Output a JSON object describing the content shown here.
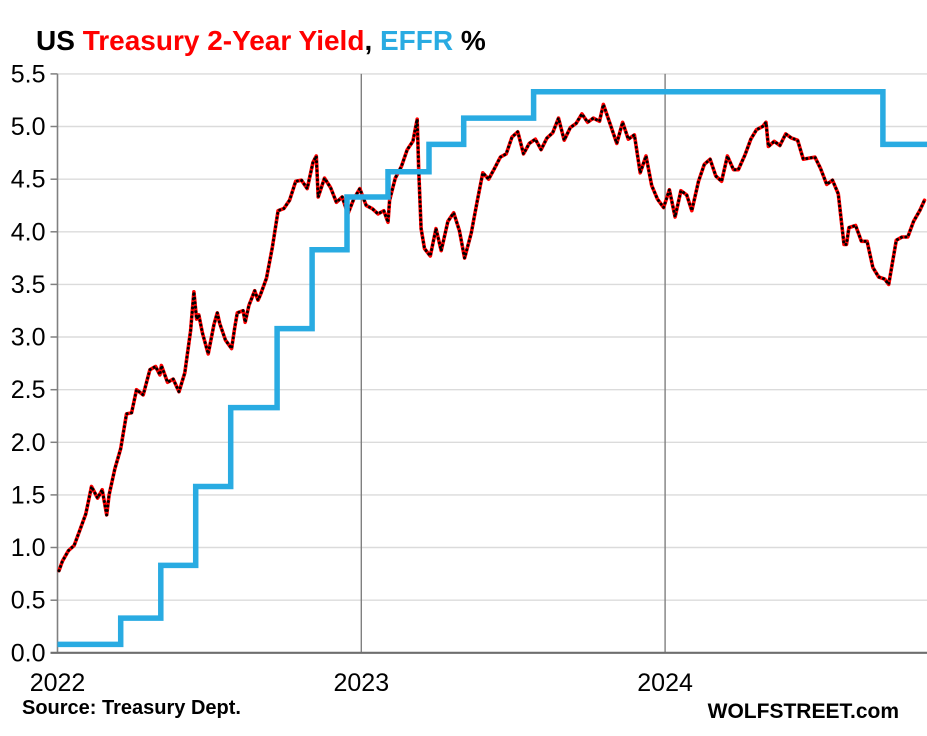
{
  "title": {
    "full_text": "US Treasury 2-Year Yield, EFFR %",
    "segments": [
      {
        "text": "US ",
        "color": "#000000"
      },
      {
        "text": "Treasury 2-Year Yield",
        "color": "#FF0000"
      },
      {
        "text": ", ",
        "color": "#000000"
      },
      {
        "text": "EFFR",
        "color": "#29ABE2"
      },
      {
        "text": " %",
        "color": "#000000"
      }
    ]
  },
  "footer": {
    "source": "Source: Treasury Dept.",
    "branding": "WOLFSTREET.com"
  },
  "colors": {
    "yield_red": "#FF0000",
    "marker_black": "#000000",
    "effr_blue": "#29ABE2",
    "grid_light": "#DBDBDB",
    "axis_gray": "#6E6E6E",
    "year_line_gray": "#808080"
  },
  "chart_data": {
    "type": "line",
    "title": "US Treasury 2-Year Yield, EFFR %",
    "xlabel": "",
    "ylabel": "",
    "grid": "horizontal light gray; dark vertical line at each year start",
    "legend": "encoded in title colors",
    "x_axis": {
      "min": 2022.0,
      "max": 2024.861,
      "tick_values": [
        2022,
        2023,
        2024
      ],
      "tick_labels": [
        "2022",
        "2023",
        "2024"
      ]
    },
    "y_axis": {
      "min": 0.0,
      "max": 5.5,
      "step": 0.5,
      "tick_labels": [
        "0.0",
        "0.5",
        "1.0",
        "1.5",
        "2.0",
        "2.5",
        "3.0",
        "3.5",
        "4.0",
        "4.5",
        "5.0",
        "5.5"
      ]
    },
    "series": [
      {
        "name": "US Treasury 2-Year Yield",
        "type": "line",
        "color": "#FF0000",
        "marker": "black-dots",
        "points": [
          [
            2022.005,
            0.78
          ],
          [
            2022.016,
            0.87
          ],
          [
            2022.036,
            0.97
          ],
          [
            2022.055,
            1.02
          ],
          [
            2022.074,
            1.17
          ],
          [
            2022.093,
            1.32
          ],
          [
            2022.112,
            1.58
          ],
          [
            2022.132,
            1.47
          ],
          [
            2022.147,
            1.55
          ],
          [
            2022.162,
            1.31
          ],
          [
            2022.17,
            1.5
          ],
          [
            2022.189,
            1.75
          ],
          [
            2022.208,
            1.94
          ],
          [
            2022.227,
            2.27
          ],
          [
            2022.244,
            2.28
          ],
          [
            2022.26,
            2.5
          ],
          [
            2022.282,
            2.45
          ],
          [
            2022.304,
            2.69
          ],
          [
            2022.323,
            2.72
          ],
          [
            2022.337,
            2.64
          ],
          [
            2022.342,
            2.73
          ],
          [
            2022.362,
            2.57
          ],
          [
            2022.381,
            2.6
          ],
          [
            2022.4,
            2.48
          ],
          [
            2022.419,
            2.66
          ],
          [
            2022.438,
            3.06
          ],
          [
            2022.449,
            3.43
          ],
          [
            2022.458,
            3.17
          ],
          [
            2022.465,
            3.21
          ],
          [
            2022.477,
            3.04
          ],
          [
            2022.496,
            2.84
          ],
          [
            2022.515,
            3.12
          ],
          [
            2022.526,
            3.23
          ],
          [
            2022.534,
            3.13
          ],
          [
            2022.553,
            2.97
          ],
          [
            2022.573,
            2.89
          ],
          [
            2022.584,
            3.1
          ],
          [
            2022.592,
            3.23
          ],
          [
            2022.611,
            3.25
          ],
          [
            2022.618,
            3.14
          ],
          [
            2022.63,
            3.3
          ],
          [
            2022.649,
            3.44
          ],
          [
            2022.66,
            3.35
          ],
          [
            2022.668,
            3.4
          ],
          [
            2022.688,
            3.56
          ],
          [
            2022.707,
            3.85
          ],
          [
            2022.726,
            4.2
          ],
          [
            2022.745,
            4.22
          ],
          [
            2022.764,
            4.3
          ],
          [
            2022.784,
            4.48
          ],
          [
            2022.803,
            4.49
          ],
          [
            2022.822,
            4.41
          ],
          [
            2022.841,
            4.66
          ],
          [
            2022.852,
            4.72
          ],
          [
            2022.858,
            4.33
          ],
          [
            2022.879,
            4.51
          ],
          [
            2022.899,
            4.42
          ],
          [
            2022.918,
            4.28
          ],
          [
            2022.937,
            4.33
          ],
          [
            2022.956,
            4.17
          ],
          [
            2022.975,
            4.31
          ],
          [
            2022.995,
            4.41
          ],
          [
            2023.016,
            4.25
          ],
          [
            2023.036,
            4.22
          ],
          [
            2023.055,
            4.17
          ],
          [
            2023.074,
            4.2
          ],
          [
            2023.088,
            4.09
          ],
          [
            2023.093,
            4.3
          ],
          [
            2023.112,
            4.51
          ],
          [
            2023.132,
            4.62
          ],
          [
            2023.151,
            4.78
          ],
          [
            2023.17,
            4.86
          ],
          [
            2023.184,
            5.07
          ],
          [
            2023.189,
            4.59
          ],
          [
            2023.197,
            4.03
          ],
          [
            2023.208,
            3.84
          ],
          [
            2023.227,
            3.77
          ],
          [
            2023.246,
            4.03
          ],
          [
            2023.263,
            3.82
          ],
          [
            2023.285,
            4.1
          ],
          [
            2023.304,
            4.18
          ],
          [
            2023.323,
            4.01
          ],
          [
            2023.34,
            3.75
          ],
          [
            2023.362,
            3.99
          ],
          [
            2023.381,
            4.28
          ],
          [
            2023.4,
            4.56
          ],
          [
            2023.419,
            4.5
          ],
          [
            2023.438,
            4.6
          ],
          [
            2023.458,
            4.71
          ],
          [
            2023.477,
            4.74
          ],
          [
            2023.496,
            4.9
          ],
          [
            2023.515,
            4.95
          ],
          [
            2023.534,
            4.74
          ],
          [
            2023.553,
            4.84
          ],
          [
            2023.573,
            4.88
          ],
          [
            2023.592,
            4.78
          ],
          [
            2023.611,
            4.89
          ],
          [
            2023.63,
            4.94
          ],
          [
            2023.649,
            5.08
          ],
          [
            2023.668,
            4.87
          ],
          [
            2023.688,
            4.99
          ],
          [
            2023.707,
            5.03
          ],
          [
            2023.726,
            5.12
          ],
          [
            2023.745,
            5.04
          ],
          [
            2023.764,
            5.08
          ],
          [
            2023.784,
            5.05
          ],
          [
            2023.797,
            5.21
          ],
          [
            2023.822,
            5.0
          ],
          [
            2023.841,
            4.84
          ],
          [
            2023.86,
            5.04
          ],
          [
            2023.879,
            4.88
          ],
          [
            2023.899,
            4.92
          ],
          [
            2023.918,
            4.56
          ],
          [
            2023.937,
            4.72
          ],
          [
            2023.956,
            4.44
          ],
          [
            2023.975,
            4.31
          ],
          [
            2023.995,
            4.23
          ],
          [
            2024.014,
            4.4
          ],
          [
            2024.033,
            4.14
          ],
          [
            2024.052,
            4.39
          ],
          [
            2024.071,
            4.35
          ],
          [
            2024.088,
            4.2
          ],
          [
            2024.11,
            4.48
          ],
          [
            2024.129,
            4.64
          ],
          [
            2024.148,
            4.69
          ],
          [
            2024.167,
            4.53
          ],
          [
            2024.186,
            4.48
          ],
          [
            2024.205,
            4.72
          ],
          [
            2024.225,
            4.59
          ],
          [
            2024.241,
            4.59
          ],
          [
            2024.263,
            4.73
          ],
          [
            2024.282,
            4.88
          ],
          [
            2024.301,
            4.97
          ],
          [
            2024.321,
            5.0
          ],
          [
            2024.332,
            5.04
          ],
          [
            2024.34,
            4.81
          ],
          [
            2024.359,
            4.86
          ],
          [
            2024.378,
            4.82
          ],
          [
            2024.397,
            4.93
          ],
          [
            2024.416,
            4.89
          ],
          [
            2024.436,
            4.87
          ],
          [
            2024.455,
            4.69
          ],
          [
            2024.474,
            4.7
          ],
          [
            2024.493,
            4.71
          ],
          [
            2024.512,
            4.6
          ],
          [
            2024.532,
            4.45
          ],
          [
            2024.551,
            4.49
          ],
          [
            2024.57,
            4.36
          ],
          [
            2024.589,
            3.88
          ],
          [
            2024.597,
            3.88
          ],
          [
            2024.605,
            4.04
          ],
          [
            2024.627,
            4.06
          ],
          [
            2024.646,
            3.91
          ],
          [
            2024.665,
            3.91
          ],
          [
            2024.684,
            3.66
          ],
          [
            2024.703,
            3.57
          ],
          [
            2024.723,
            3.55
          ],
          [
            2024.736,
            3.5
          ],
          [
            2024.761,
            3.92
          ],
          [
            2024.78,
            3.95
          ],
          [
            2024.799,
            3.95
          ],
          [
            2024.818,
            4.1
          ],
          [
            2024.838,
            4.2
          ],
          [
            2024.854,
            4.3
          ]
        ]
      },
      {
        "name": "EFFR",
        "type": "step-after",
        "color": "#29ABE2",
        "points": [
          [
            2022.0,
            0.08
          ],
          [
            2022.208,
            0.33
          ],
          [
            2022.34,
            0.83
          ],
          [
            2022.455,
            1.58
          ],
          [
            2022.57,
            2.33
          ],
          [
            2022.723,
            3.08
          ],
          [
            2022.838,
            3.83
          ],
          [
            2022.953,
            4.33
          ],
          [
            2023.088,
            4.57
          ],
          [
            2023.223,
            4.83
          ],
          [
            2023.337,
            5.08
          ],
          [
            2023.567,
            5.33
          ],
          [
            2024.717,
            4.83
          ],
          [
            2024.861,
            4.83
          ]
        ]
      }
    ]
  }
}
